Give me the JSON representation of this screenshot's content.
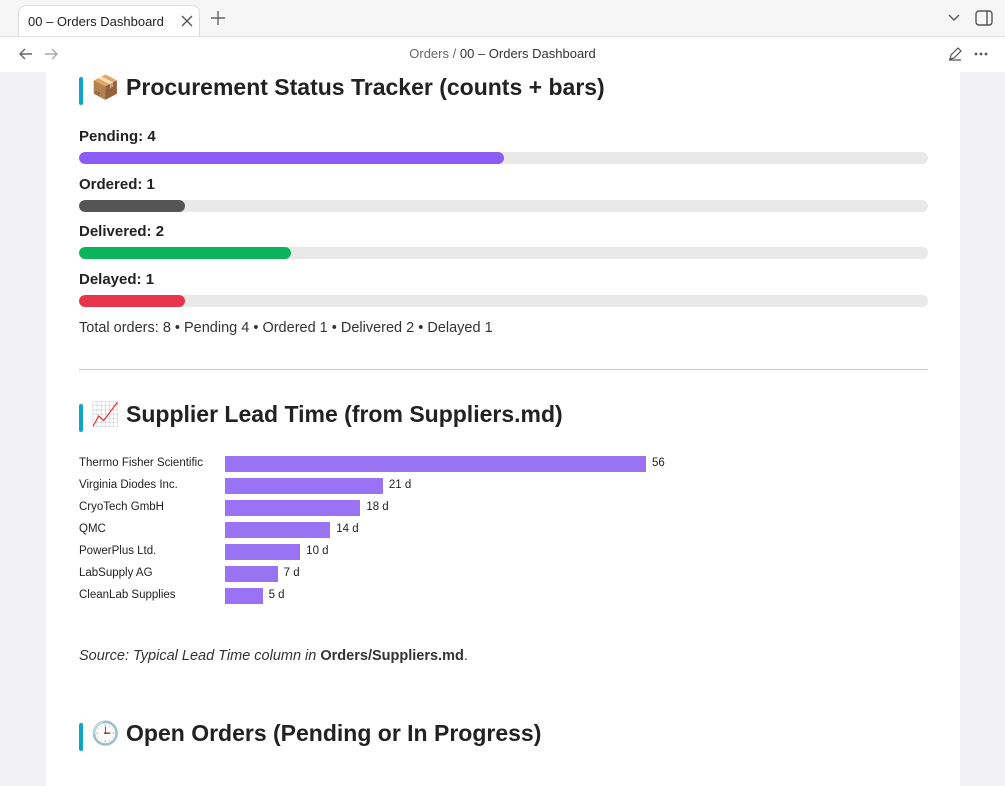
{
  "tab": {
    "title": "00 – Orders Dashboard"
  },
  "breadcrumb": {
    "folder": "Orders",
    "separator": "/",
    "file": "00 – Orders Dashboard"
  },
  "status_tracker": {
    "heading": "📦 Procurement Status Tracker (counts + bars)",
    "items": [
      {
        "label": "Pending: 4",
        "value": 4,
        "color": "#8b5cf6"
      },
      {
        "label": "Ordered: 1",
        "value": 1,
        "color": "#555555"
      },
      {
        "label": "Delivered: 2",
        "value": 2,
        "color": "#0bb45a"
      },
      {
        "label": "Delayed: 1",
        "value": 1,
        "color": "#e8334a"
      }
    ],
    "summary": "Total orders: 8 • Pending 4 • Ordered 1 • Delivered 2 • Delayed 1"
  },
  "lead_time": {
    "heading": "📈 Supplier Lead Time (from Suppliers.md)",
    "chart_data": {
      "type": "bar",
      "categories": [
        "Thermo Fisher Scientific",
        "Virginia Diodes Inc.",
        "CryoTech GmbH",
        "QMC",
        "PowerPlus Ltd.",
        "LabSupply AG",
        "CleanLab Supplies"
      ],
      "values": [
        56,
        21,
        18,
        14,
        10,
        7,
        5
      ],
      "value_labels": [
        "56",
        "21 d",
        "18 d",
        "14 d",
        "10 d",
        "7 d",
        "5 d"
      ],
      "color": "#9a73f5"
    }
  },
  "source_note": {
    "prefix": "Source: Typical Lead Time column in",
    "strong": "Orders/Suppliers.md",
    "suffix": "."
  },
  "open_orders": {
    "heading": "🕒 Open Orders (Pending or In Progress)"
  }
}
